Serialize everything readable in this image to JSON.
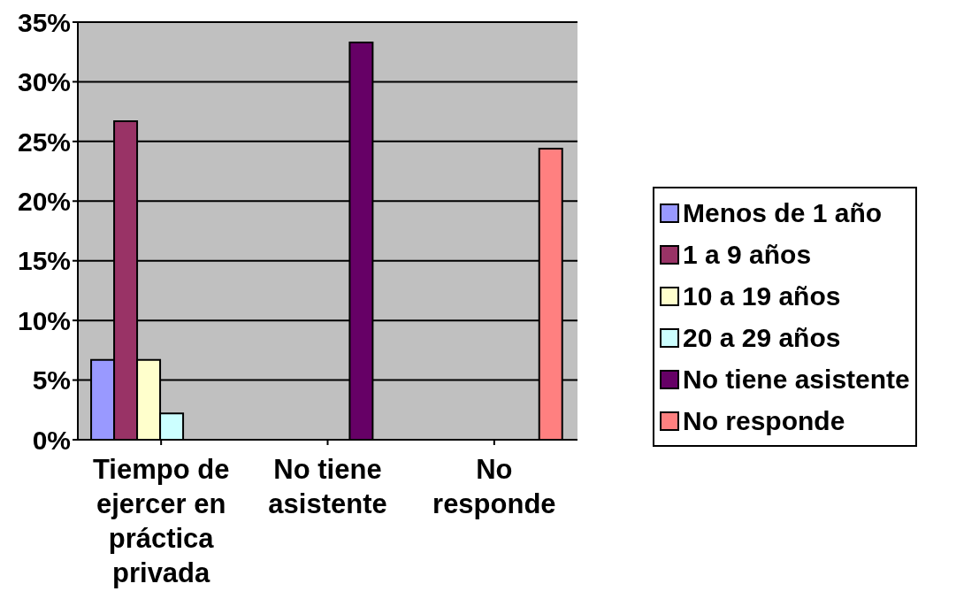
{
  "chart_data": {
    "type": "bar",
    "categories": [
      "Tiempo de ejercer en práctica privada",
      "No tiene asistente",
      "No responde"
    ],
    "series": [
      {
        "name": "Menos de 1 año",
        "color": "#9999ff",
        "values": [
          6.7,
          null,
          null
        ]
      },
      {
        "name": "1 a 9 años",
        "color": "#993366",
        "values": [
          26.7,
          null,
          null
        ]
      },
      {
        "name": "10 a 19 años",
        "color": "#ffffcc",
        "values": [
          6.7,
          null,
          null
        ]
      },
      {
        "name": "20 a 29 años",
        "color": "#ccffff",
        "values": [
          2.2,
          null,
          null
        ]
      },
      {
        "name": "No tiene asistente",
        "color": "#660066",
        "values": [
          null,
          33.3,
          null
        ]
      },
      {
        "name": "No responde",
        "color": "#ff8080",
        "values": [
          null,
          null,
          24.4
        ]
      }
    ],
    "ylim": [
      0,
      35
    ],
    "yticks": [
      {
        "value": 0,
        "label": "0%"
      },
      {
        "value": 5,
        "label": "5%"
      },
      {
        "value": 10,
        "label": "10%"
      },
      {
        "value": 15,
        "label": "15%"
      },
      {
        "value": 20,
        "label": "20%"
      },
      {
        "value": 25,
        "label": "25%"
      },
      {
        "value": 30,
        "label": "30%"
      },
      {
        "value": 35,
        "label": "35%"
      }
    ],
    "grid": "y",
    "legend": "right"
  }
}
